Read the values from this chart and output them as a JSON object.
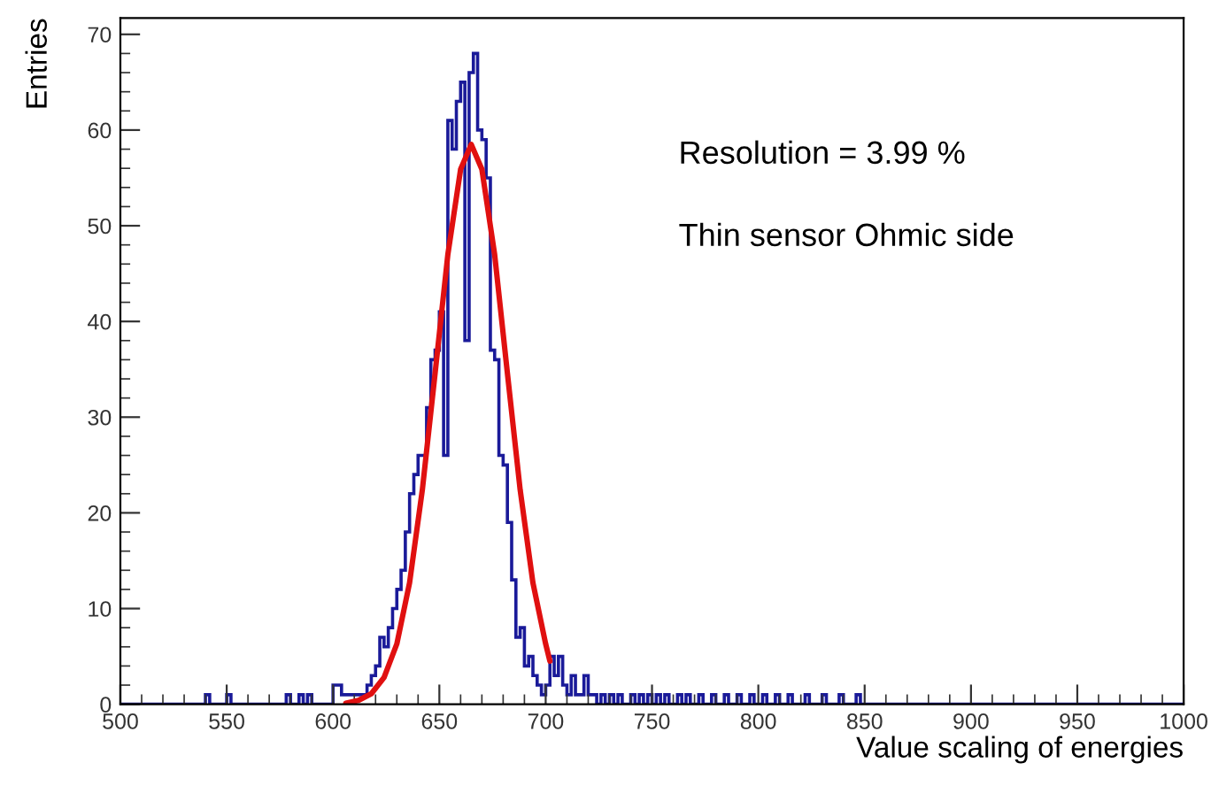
{
  "chart_data": {
    "type": "histogram",
    "xlabel": "Value scaling of energies",
    "ylabel": "Entries",
    "annotations": [
      "Resolution = 3.99 %",
      "Thin sensor Ohmic side"
    ],
    "color": "#1a1a99",
    "bins": [
      500,
      540,
      542,
      550,
      552,
      578,
      580,
      584,
      586,
      588,
      590,
      600,
      602,
      604,
      606,
      608,
      610,
      612,
      614,
      616,
      618,
      620,
      622,
      624,
      626,
      628,
      630,
      632,
      634,
      636,
      638,
      640,
      642,
      644,
      646,
      648,
      650,
      652,
      654,
      656,
      658,
      660,
      662,
      664,
      666,
      668,
      670,
      672,
      674,
      676,
      678,
      680,
      682,
      684,
      686,
      688,
      690,
      692,
      694,
      696,
      698,
      700,
      702,
      704,
      706,
      708,
      710,
      712,
      714,
      716,
      718,
      720,
      722,
      724,
      726,
      728,
      730,
      732,
      734,
      736,
      740,
      742,
      744,
      746,
      748,
      750,
      752,
      754,
      756,
      758,
      762,
      764,
      766,
      768,
      772,
      774,
      778,
      780,
      784,
      786,
      790,
      792,
      796,
      798,
      802,
      804,
      808,
      810,
      814,
      816,
      822,
      824,
      830,
      832,
      838,
      840,
      846,
      848,
      1000
    ],
    "values": [
      0,
      1,
      0,
      1,
      0,
      1,
      0,
      1,
      0,
      1,
      0,
      2,
      2,
      1,
      1,
      1,
      1,
      1,
      1,
      2,
      3,
      4,
      7,
      6,
      8,
      10,
      12,
      14,
      18,
      22,
      24,
      26,
      26,
      31,
      36,
      37,
      41,
      26,
      61,
      58,
      63,
      65,
      38,
      66,
      68,
      60,
      59,
      55,
      37,
      36,
      26,
      25,
      19,
      13,
      7,
      8,
      4,
      5,
      3,
      2,
      1,
      2,
      5,
      3,
      5,
      2,
      1,
      3,
      1,
      1,
      3,
      1,
      1,
      0,
      1,
      0,
      1,
      0,
      1,
      0,
      1,
      0,
      1,
      0,
      1,
      0,
      1,
      0,
      1,
      0,
      1,
      0,
      1,
      0,
      1,
      0,
      1,
      0,
      1,
      0,
      1,
      0,
      1,
      0,
      1,
      0,
      1,
      0,
      1,
      0,
      1,
      0,
      1,
      0,
      1,
      0,
      1,
      0
    ],
    "series": [
      {
        "type": "line",
        "color": "#e01010",
        "x": [
          606,
          612,
          618,
          624,
          630,
          636,
          642,
          648,
          654,
          660,
          665,
          670,
          676,
          682,
          688,
          694,
          700,
          702
        ],
        "values": [
          0.1,
          0.4,
          1.1,
          2.8,
          6.3,
          12.7,
          22.4,
          34.6,
          47,
          55.9,
          58.5,
          55.9,
          47,
          34.6,
          22.4,
          12.7,
          6.3,
          4.5
        ]
      }
    ],
    "xlim": [
      500,
      1000
    ],
    "xticks": [
      500,
      550,
      600,
      650,
      700,
      750,
      800,
      850,
      900,
      950,
      1000
    ],
    "ylim": [
      0,
      71.7
    ],
    "yticks": [
      0,
      10,
      20,
      30,
      40,
      50,
      60,
      70
    ],
    "grid": false,
    "legend": false
  }
}
